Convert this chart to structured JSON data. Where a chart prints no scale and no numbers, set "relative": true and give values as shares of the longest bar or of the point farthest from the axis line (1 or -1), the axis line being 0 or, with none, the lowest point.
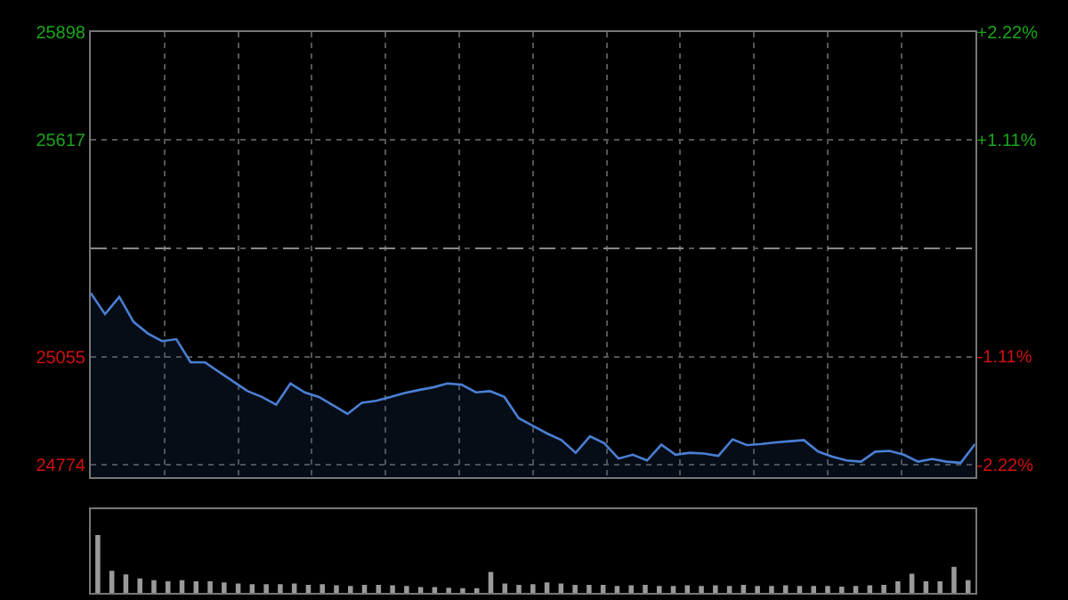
{
  "chart_data": [
    {
      "type": "area",
      "categories": [
        null,
        null,
        null,
        null,
        null,
        null,
        null,
        null,
        null,
        null,
        null,
        null,
        null,
        null,
        null,
        null,
        null,
        null,
        null,
        null,
        null,
        null,
        null,
        null,
        null,
        null,
        null,
        null,
        null,
        null,
        null,
        null,
        null,
        null,
        null,
        null,
        null,
        null,
        null,
        null,
        null,
        null,
        null,
        null,
        null,
        null,
        null,
        null,
        null,
        null,
        null,
        null,
        null,
        null,
        null,
        null,
        null,
        null,
        null,
        null,
        null,
        null,
        null
      ],
      "series": [
        {
          "color": "#4a7fd4",
          "values": [
            25220,
            25165,
            25210,
            25145,
            25115,
            25095,
            25100,
            25040,
            25040,
            25015,
            24990,
            24965,
            24950,
            24930,
            24985,
            24962,
            24950,
            24928,
            24906,
            24935,
            24940,
            24950,
            24960,
            24968,
            24975,
            24985,
            24982,
            24962,
            24965,
            24950,
            24895,
            24875,
            24855,
            24838,
            24805,
            24848,
            24830,
            24790,
            24800,
            24785,
            24826,
            24800,
            24805,
            24803,
            24797,
            24840,
            24825,
            24828,
            24832,
            24835,
            24838,
            24808,
            24795,
            24785,
            24782,
            24808,
            24810,
            24800,
            24782,
            24789,
            24782,
            24779,
            24828
          ]
        }
      ],
      "ylim": [
        24742,
        25898
      ],
      "yticks": [
        24774,
        25055,
        {
          "value": 25336,
          "label": null
        },
        25617,
        25898
      ],
      "y2lim": [
        -2.35,
        2.22
      ],
      "y2ticks": [
        {
          "value": -2.22,
          "label": "-2.22%"
        },
        {
          "value": -1.11,
          "label": "-1.11%"
        },
        {
          "value": 1.11,
          "label": "+1.11%"
        },
        {
          "value": 2.22,
          "label": "+2.22%"
        }
      ],
      "ref_lines": [
        {
          "axis": "y",
          "value": 25336,
          "line_style": "dashed",
          "color": "#888888"
        }
      ],
      "grid": true
    },
    {
      "type": "bar",
      "relative": true,
      "categories": [
        null,
        null,
        null,
        null,
        null,
        null,
        null,
        null,
        null,
        null,
        null,
        null,
        null,
        null,
        null,
        null,
        null,
        null,
        null,
        null,
        null,
        null,
        null,
        null,
        null,
        null,
        null,
        null,
        null,
        null,
        null,
        null,
        null,
        null,
        null,
        null,
        null,
        null,
        null,
        null,
        null,
        null,
        null,
        null,
        null,
        null,
        null,
        null,
        null,
        null,
        null,
        null,
        null,
        null,
        null,
        null,
        null,
        null,
        null,
        null,
        null,
        null,
        null
      ],
      "color": "#9a9a9a",
      "values": [
        1,
        0.38,
        0.32,
        0.25,
        0.22,
        0.2,
        0.22,
        0.2,
        0.2,
        0.18,
        0.16,
        0.15,
        0.15,
        0.15,
        0.16,
        0.14,
        0.15,
        0.13,
        0.12,
        0.14,
        0.14,
        0.13,
        0.12,
        0.1,
        0.1,
        0.09,
        0.08,
        0.08,
        0.36,
        0.16,
        0.14,
        0.15,
        0.18,
        0.16,
        0.14,
        0.14,
        0.14,
        0.12,
        0.13,
        0.14,
        0.12,
        0.12,
        0.13,
        0.12,
        0.13,
        0.12,
        0.14,
        0.12,
        0.12,
        0.13,
        0.12,
        0.12,
        0.12,
        0.11,
        0.12,
        0.13,
        0.14,
        0.2,
        0.33,
        0.2,
        0.2,
        0.45,
        0.22
      ]
    }
  ]
}
